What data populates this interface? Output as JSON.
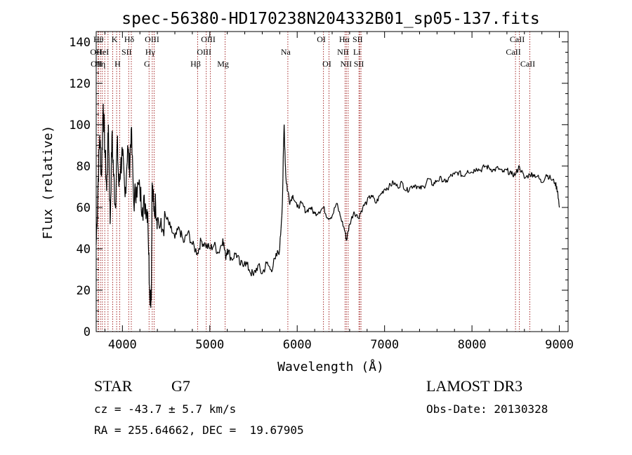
{
  "chart_data": {
    "type": "line",
    "title": "spec-56380-HD170238N204332B01_sp05-137.fits",
    "xlabel": "Wavelength (Å)",
    "ylabel": "Flux (relative)",
    "xlim": [
      3700,
      9100
    ],
    "ylim": [
      0,
      145
    ],
    "x_ticks": [
      4000,
      5000,
      6000,
      7000,
      8000,
      9000
    ],
    "y_ticks": [
      0,
      20,
      40,
      60,
      80,
      100,
      120,
      140
    ],
    "grid": false,
    "line_color": "#000000",
    "marker_color": "#a52a2a",
    "series": [
      {
        "x": [
          3700,
          3720,
          3740,
          3760,
          3780,
          3800,
          3820,
          3840,
          3860,
          3880,
          3900,
          3920,
          3940,
          3960,
          3980,
          4000,
          4030,
          4060,
          4080,
          4100,
          4130,
          4160,
          4200,
          4230,
          4260,
          4290,
          4310,
          4330,
          4340,
          4360,
          4380,
          4400,
          4450,
          4500,
          4550,
          4600,
          4650,
          4700,
          4750,
          4800,
          4860,
          4900,
          4950,
          5000,
          5050,
          5100,
          5150,
          5180,
          5200,
          5250,
          5300,
          5350,
          5400,
          5450,
          5500,
          5550,
          5600,
          5650,
          5700,
          5750,
          5800,
          5830,
          5850,
          5870,
          5890,
          5920,
          5950,
          6000,
          6050,
          6100,
          6150,
          6200,
          6250,
          6300,
          6350,
          6400,
          6450,
          6500,
          6550,
          6563,
          6600,
          6650,
          6700,
          6750,
          6800,
          6850,
          6900,
          6950,
          7000,
          7050,
          7100,
          7150,
          7200,
          7250,
          7300,
          7350,
          7400,
          7450,
          7500,
          7550,
          7600,
          7650,
          7700,
          7750,
          7800,
          7850,
          7900,
          7950,
          8000,
          8050,
          8100,
          8150,
          8200,
          8250,
          8300,
          8350,
          8400,
          8450,
          8500,
          8542,
          8600,
          8662,
          8700,
          8750,
          8800,
          8850,
          8900,
          8950,
          8980,
          9000
        ],
        "y": [
          42,
          70,
          95,
          75,
          110,
          88,
          68,
          100,
          52,
          95,
          75,
          60,
          92,
          70,
          80,
          85,
          65,
          90,
          78,
          98,
          62,
          70,
          68,
          60,
          62,
          58,
          22,
          15,
          72,
          58,
          62,
          55,
          48,
          55,
          50,
          45,
          50,
          43,
          48,
          42,
          38,
          44,
          42,
          40,
          42,
          38,
          45,
          36,
          40,
          35,
          38,
          32,
          34,
          30,
          27,
          32,
          28,
          33,
          30,
          35,
          40,
          62,
          100,
          75,
          68,
          63,
          66,
          60,
          62,
          58,
          60,
          57,
          58,
          60,
          55,
          56,
          62,
          55,
          48,
          44,
          52,
          58,
          55,
          60,
          63,
          66,
          62,
          66,
          69,
          70,
          72,
          70,
          72,
          68,
          70,
          71,
          69,
          70,
          74,
          71,
          73,
          74,
          72,
          75,
          76,
          77,
          75,
          78,
          77,
          79,
          78,
          80,
          79,
          78,
          79,
          77,
          78,
          76,
          76,
          80,
          74,
          76,
          76,
          75,
          72,
          76,
          74,
          72,
          68,
          60
        ]
      }
    ],
    "line_markers": [
      {
        "x": 3722,
        "label": "OII",
        "row": 2
      },
      {
        "x": 3727,
        "label": "OII",
        "row": 3
      },
      {
        "x": 3750,
        "label": "Hθ",
        "row": 1
      },
      {
        "x": 3770,
        "label": "Hη",
        "row": 3
      },
      {
        "x": 3798,
        "label": "HeI",
        "row": 2
      },
      {
        "x": 3835,
        "label": "",
        "row": 0
      },
      {
        "x": 3889,
        "label": "",
        "row": 0
      },
      {
        "x": 3934,
        "label": "K",
        "row": 1
      },
      {
        "x": 3969,
        "label": "H",
        "row": 3
      },
      {
        "x": 4072,
        "label": "SII",
        "row": 2
      },
      {
        "x": 4102,
        "label": "Hδ",
        "row": 1
      },
      {
        "x": 4305,
        "label": "G",
        "row": 3
      },
      {
        "x": 4341,
        "label": "Hγ",
        "row": 2
      },
      {
        "x": 4363,
        "label": "OIII",
        "row": 1
      },
      {
        "x": 4861,
        "label": "Hβ",
        "row": 3
      },
      {
        "x": 4959,
        "label": "OIII",
        "row": 2
      },
      {
        "x": 5007,
        "label": "OIII",
        "row": 1
      },
      {
        "x": 5175,
        "label": "Mg",
        "row": 3
      },
      {
        "x": 5893,
        "label": "Na",
        "row": 2
      },
      {
        "x": 6300,
        "label": "OI",
        "row": 1
      },
      {
        "x": 6364,
        "label": "OI",
        "row": 3
      },
      {
        "x": 6548,
        "label": "NII",
        "row": 2
      },
      {
        "x": 6563,
        "label": "Hα",
        "row": 1
      },
      {
        "x": 6583,
        "label": "NII",
        "row": 3
      },
      {
        "x": 6707,
        "label": "Li",
        "row": 2
      },
      {
        "x": 6716,
        "label": "SII",
        "row": 1
      },
      {
        "x": 6730,
        "label": "SII",
        "row": 3
      },
      {
        "x": 8498,
        "label": "CaII",
        "row": 2
      },
      {
        "x": 8542,
        "label": "CaII",
        "row": 1
      },
      {
        "x": 8662,
        "label": "CaII",
        "row": 3
      }
    ]
  },
  "info": {
    "object_type": "STAR",
    "subclass": "G7",
    "survey": "LAMOST DR3",
    "cz": "cz = -43.7 ± 5.7 km/s",
    "obs_date": "Obs-Date: 20130328",
    "coords": "RA = 255.64662, DEC =  19.67905"
  }
}
